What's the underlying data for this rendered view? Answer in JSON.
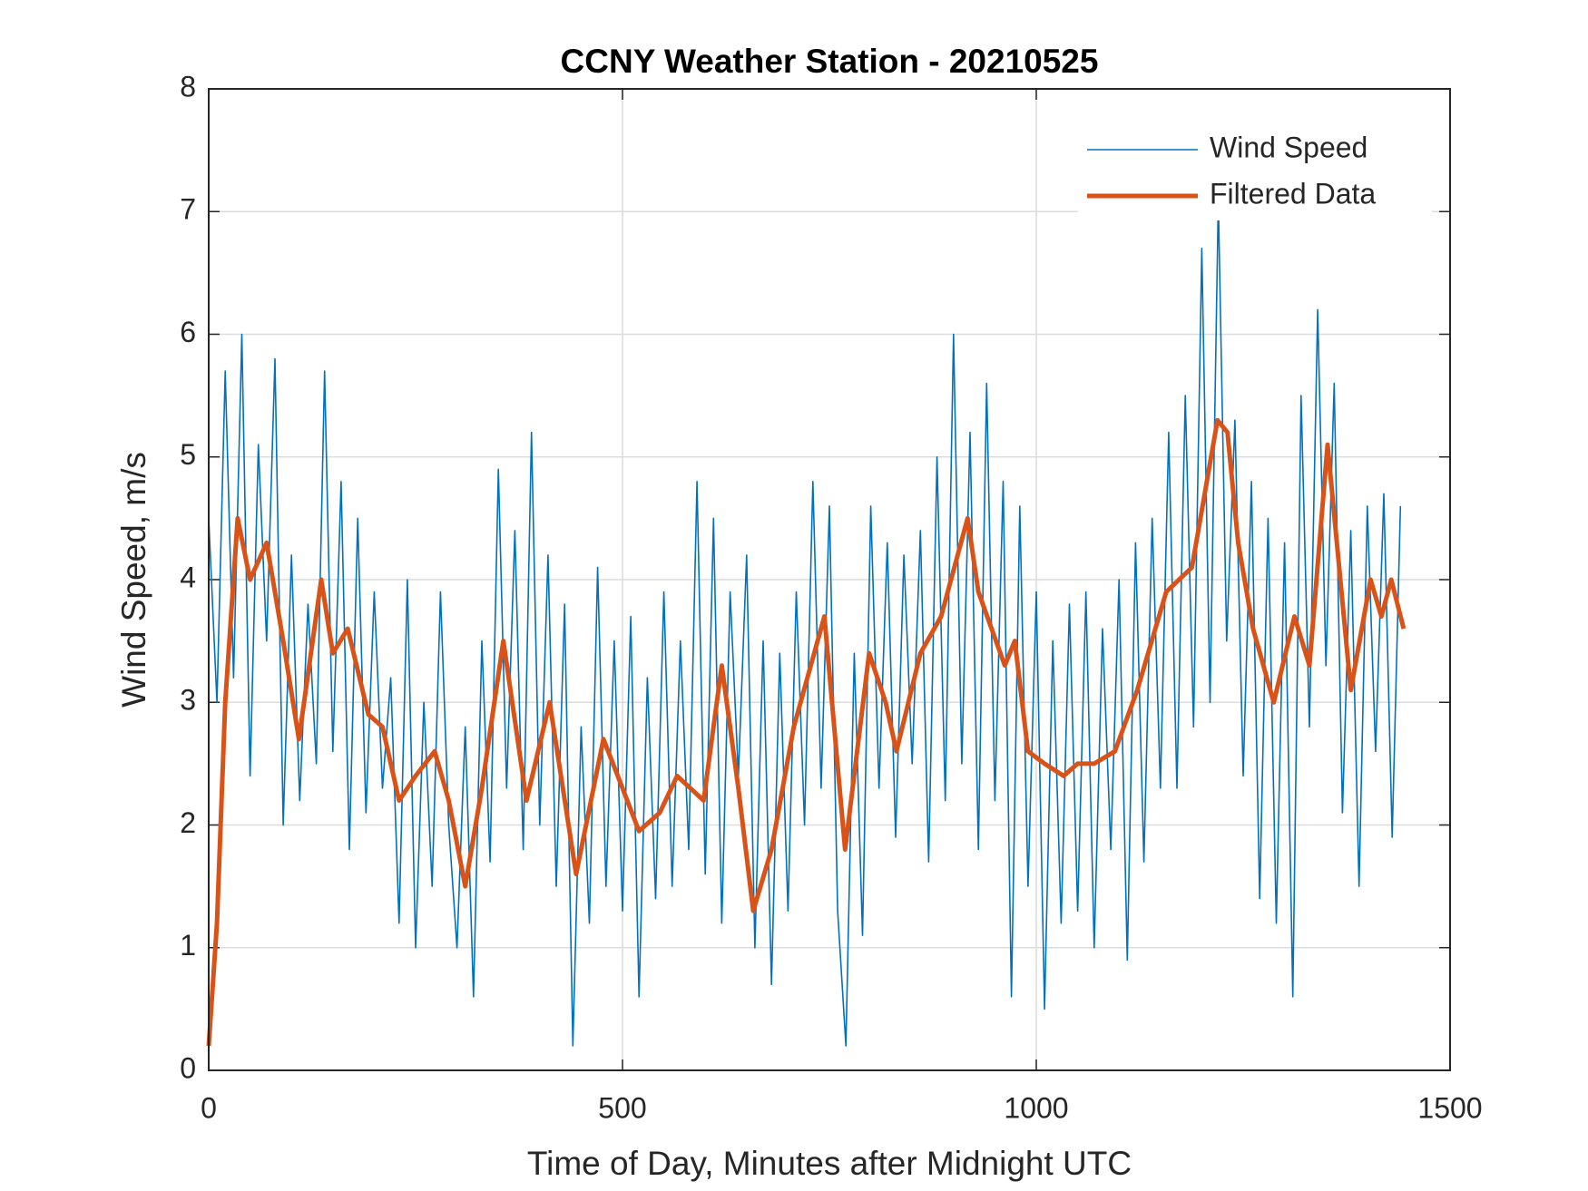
{
  "chart_data": {
    "type": "line",
    "title": "CCNY Weather Station - 20210525",
    "xlabel": "Time of Day, Minutes after Midnight UTC",
    "ylabel": "Wind Speed, m/s",
    "xlim": [
      0,
      1500
    ],
    "xticks": [
      0,
      500,
      1000,
      1500
    ],
    "ylim": [
      0,
      8
    ],
    "yticks": [
      0,
      1,
      2,
      3,
      4,
      5,
      6,
      7,
      8
    ],
    "grid": true,
    "legend": "upper-right",
    "series": [
      {
        "name": "Wind Speed",
        "color": "#0072BD",
        "x": [
          0,
          10,
          20,
          30,
          40,
          50,
          60,
          70,
          80,
          90,
          100,
          110,
          120,
          130,
          140,
          150,
          160,
          170,
          180,
          190,
          200,
          210,
          220,
          230,
          240,
          250,
          260,
          270,
          280,
          290,
          300,
          310,
          320,
          330,
          340,
          350,
          360,
          370,
          380,
          390,
          400,
          410,
          420,
          430,
          440,
          450,
          460,
          470,
          480,
          490,
          500,
          510,
          520,
          530,
          540,
          550,
          560,
          570,
          580,
          590,
          600,
          610,
          620,
          630,
          640,
          650,
          660,
          670,
          680,
          690,
          700,
          710,
          720,
          730,
          740,
          750,
          760,
          770,
          780,
          790,
          800,
          810,
          820,
          830,
          840,
          850,
          860,
          870,
          880,
          890,
          900,
          910,
          920,
          930,
          940,
          950,
          960,
          970,
          980,
          990,
          1000,
          1010,
          1020,
          1030,
          1040,
          1050,
          1060,
          1070,
          1080,
          1090,
          1100,
          1110,
          1120,
          1130,
          1140,
          1150,
          1160,
          1170,
          1180,
          1190,
          1200,
          1210,
          1220,
          1230,
          1240,
          1250,
          1260,
          1270,
          1280,
          1290,
          1300,
          1310,
          1320,
          1330,
          1340,
          1350,
          1360,
          1370,
          1380,
          1390,
          1400,
          1410,
          1420,
          1430,
          1440
        ],
        "values": [
          4.5,
          3.0,
          5.7,
          3.2,
          6.0,
          2.4,
          5.1,
          3.5,
          5.8,
          2.0,
          4.2,
          2.2,
          3.8,
          2.5,
          5.7,
          2.6,
          4.8,
          1.8,
          4.5,
          2.1,
          3.9,
          2.3,
          3.2,
          1.2,
          4.0,
          1.0,
          3.0,
          1.5,
          3.9,
          2.0,
          1.0,
          2.8,
          0.6,
          3.5,
          1.7,
          4.9,
          2.3,
          4.4,
          1.8,
          5.2,
          2.0,
          4.2,
          1.5,
          3.8,
          0.2,
          2.8,
          1.2,
          4.1,
          1.5,
          3.5,
          1.3,
          3.7,
          0.6,
          3.2,
          1.4,
          3.9,
          1.5,
          3.5,
          1.8,
          4.8,
          1.6,
          4.5,
          1.2,
          3.9,
          2.4,
          4.2,
          1.0,
          3.5,
          0.7,
          3.4,
          1.3,
          3.9,
          2.0,
          4.8,
          2.3,
          4.6,
          1.3,
          0.2,
          3.4,
          1.1,
          4.6,
          2.3,
          4.3,
          1.9,
          4.2,
          2.5,
          4.4,
          1.7,
          5.0,
          2.2,
          6.0,
          2.5,
          5.2,
          1.8,
          5.6,
          2.2,
          4.8,
          0.6,
          4.6,
          1.5,
          3.9,
          0.5,
          3.5,
          1.2,
          3.8,
          1.3,
          3.9,
          1.0,
          3.6,
          1.8,
          4.0,
          0.9,
          4.3,
          1.7,
          4.5,
          2.3,
          5.2,
          2.3,
          5.5,
          2.8,
          6.7,
          3.0,
          7.1,
          3.5,
          5.3,
          2.4,
          4.8,
          1.4,
          4.5,
          1.2,
          4.3,
          0.6,
          5.5,
          2.8,
          6.2,
          3.3,
          5.6,
          2.1,
          4.4,
          1.5,
          4.6,
          2.6,
          4.7,
          1.9,
          4.6
        ]
      },
      {
        "name": "Filtered Data",
        "color": "#D95319",
        "x": [
          0,
          10,
          20,
          35,
          50,
          70,
          90,
          109,
          136,
          150,
          168,
          193,
          210,
          230,
          250,
          273,
          290,
          310,
          330,
          356,
          384,
          412,
          444,
          477,
          500,
          520,
          545,
          566,
          598,
          620,
          640,
          658,
          680,
          707,
          744,
          769,
          798,
          818,
          831,
          860,
          885,
          917,
          930,
          962,
          974,
          990,
          1010,
          1033,
          1050,
          1070,
          1095,
          1122,
          1157,
          1188,
          1219,
          1231,
          1244,
          1262,
          1287,
          1312,
          1330,
          1352,
          1380,
          1404,
          1417,
          1429,
          1444
        ],
        "values": [
          0.2,
          1.2,
          3.0,
          4.5,
          4.0,
          4.3,
          3.5,
          2.7,
          4.0,
          3.4,
          3.6,
          2.9,
          2.8,
          2.2,
          2.4,
          2.6,
          2.2,
          1.5,
          2.3,
          3.5,
          2.2,
          3.0,
          1.6,
          2.7,
          2.3,
          1.95,
          2.1,
          2.4,
          2.2,
          3.3,
          2.3,
          1.3,
          1.8,
          2.8,
          3.7,
          1.8,
          3.4,
          3.0,
          2.6,
          3.4,
          3.7,
          4.5,
          3.9,
          3.3,
          3.5,
          2.6,
          2.5,
          2.4,
          2.5,
          2.5,
          2.6,
          3.1,
          3.9,
          4.1,
          5.3,
          5.2,
          4.3,
          3.6,
          3.0,
          3.7,
          3.3,
          5.1,
          3.1,
          4.0,
          3.7,
          4.0,
          3.6
        ]
      }
    ]
  }
}
